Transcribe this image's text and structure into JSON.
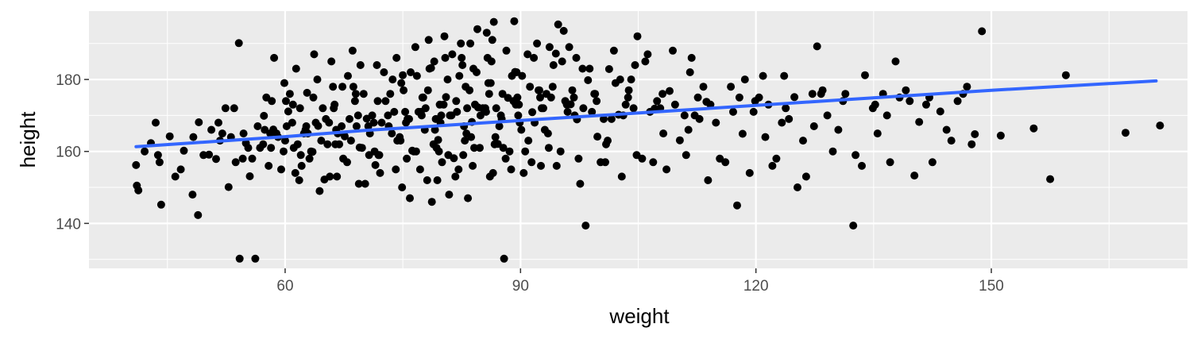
{
  "chart_data": {
    "type": "scatter",
    "title": "",
    "xlabel": "weight",
    "ylabel": "height",
    "xlim": [
      35,
      175
    ],
    "ylim": [
      127.5,
      199
    ],
    "x_ticks": [
      60,
      90,
      120,
      150
    ],
    "y_ticks": [
      140,
      160,
      180
    ],
    "x_tick_labels": [
      "60",
      "90",
      "120",
      "150"
    ],
    "y_tick_labels": [
      "140",
      "160",
      "180"
    ],
    "grid": true,
    "legend": "none",
    "colors": {
      "panel_background": "#ebebeb",
      "grid": "#ffffff",
      "points": "#000000",
      "smooth_line": "#3366ff"
    },
    "trend_line": {
      "type": "smooth",
      "x": [
        41,
        60,
        70,
        90,
        110,
        130,
        150,
        171
      ],
      "y": [
        161.3,
        164.1,
        165.8,
        168.6,
        171.4,
        174.2,
        177.0,
        179.6
      ]
    },
    "series": [
      {
        "x": [
          54.2,
          56.2,
          87.9,
          98.3,
          132.4,
          157.5,
          140.2,
          147.9,
          159.5,
          167.1,
          171.5,
          155.4,
          151.2,
          54.1,
          41.1,
          44.2,
          48.9,
          86.6,
          89.2,
          94.8,
          95.5,
          41.0,
          41.3,
          42.1,
          42.9,
          43.5,
          44.0,
          45.3,
          46.0,
          47.1,
          48.2,
          49.0,
          50.3,
          51.2,
          52.0,
          52.8,
          53.5,
          55.0,
          55.8,
          57.3,
          58.5,
          59.5,
          60.4,
          61.6,
          62.8,
          63.5,
          64.2,
          65.0,
          66.3,
          67.6,
          68.7,
          69.5,
          70.4,
          71.5,
          72.8,
          73.6,
          75.0,
          76.2,
          77.4,
          78.6,
          79.5,
          80.5,
          81.5,
          82.5,
          83.8,
          84.6,
          85.9,
          87.1,
          88.4,
          89.3,
          90.1,
          91.5,
          92.3,
          93.6,
          94.5,
          96.4,
          97.2,
          98.6,
          99.8,
          101.3,
          102.5,
          103.7,
          104.8,
          105.9,
          107.1,
          108.2,
          109.0,
          110.3,
          111.6,
          112.8,
          113.7,
          115.4,
          116.8,
          118.3,
          119.7,
          120.9,
          122.1,
          123.3,
          124.9,
          126.0,
          127.8,
          129.1,
          130.5,
          131.4,
          132.7,
          133.9,
          135.5,
          136.7,
          137.8,
          139.6,
          140.8,
          142.5,
          143.5,
          144.9,
          146.4,
          147.5,
          148.8,
          56.8,
          58.1,
          60.0,
          62.0,
          63.9,
          66.9,
          69.1,
          72.3,
          74.6,
          77.0,
          79.1,
          81.0,
          83.1,
          85.2,
          87.3,
          89.7,
          91.8,
          93.1,
          95.9,
          98.0,
          100.6,
          103.1,
          106.5,
          109.7,
          112.2,
          114.9,
          117.9,
          121.6,
          124.2,
          128.5,
          131.1,
          134.9,
          138.3,
          141.7,
          145.7,
          52.4,
          55.5,
          57.9,
          59.8,
          61.3,
          63.1,
          65.7,
          67.9,
          70.2,
          72.0,
          74.1,
          76.7,
          78.1,
          80.0,
          82.1,
          84.1,
          86.1,
          88.1,
          90.4,
          92.6,
          95.1,
          97.6,
          100.2,
          102.9,
          105.5,
          108.6,
          111.1,
          113.9,
          116.1,
          119.2,
          122.6,
          126.4,
          129.8,
          133.5,
          137.1,
          43.8,
          46.7,
          49.6,
          51.7,
          53.7,
          55.3,
          57.2,
          59.1,
          61.1,
          62.4,
          64.6,
          66.5,
          68.4,
          70.8,
          73.2,
          75.6,
          77.8,
          79.8,
          82.8,
          84.9,
          87.6,
          89.9,
          92.9,
          96.9,
          99.1,
          101.6,
          104.4,
          107.4,
          110.9,
          114.2,
          117.1,
          120.4,
          123.8,
          127.2,
          135.2,
          142.1,
          146.9,
          60.6,
          62.7,
          64.8,
          66.7,
          68.9,
          71.1,
          73.4,
          75.3,
          77.6,
          79.7,
          81.8,
          83.5,
          85.5,
          87.7,
          89.6,
          91.2,
          93.9,
          96.6,
          99.4,
          102.1,
          104.1,
          106.9,
          63.3,
          65.4,
          67.4,
          69.8,
          71.9,
          74.3,
          76.4,
          78.9,
          80.8,
          82.9,
          84.8,
          86.8,
          88.6,
          91.0,
          93.3,
          57.6,
          59.9,
          61.9,
          64.1,
          66.1,
          68.0,
          70.0,
          72.6,
          74.8,
          76.8,
          78.4,
          80.7,
          82.6,
          84.4,
          86.3,
          88.9,
          91.7,
          94.2,
          97.9,
          100.9,
          50.6,
          53.1,
          56.5,
          58.9,
          60.9,
          62.6,
          65.2,
          67.2,
          69.3,
          71.3,
          73.9,
          75.8,
          77.9,
          79.9,
          81.9,
          84.2,
          86.9,
          89.4,
          92.5,
          95.7,
          99.5,
          103.8,
          108.1,
          113.3,
          118.6,
          125.3,
          61.8,
          64.4,
          66.6,
          69.4,
          72.1,
          74.9,
          77.2,
          79.4,
          81.7,
          83.9,
          86.5,
          88.8,
          91.4,
          94.6,
          97.4,
          100.8,
          104.6,
          58.6,
          61.4,
          63.7,
          65.9,
          68.6,
          71.7,
          74.2,
          76.6,
          79.0,
          81.3,
          83.6,
          85.8,
          88.2,
          90.9,
          93.7,
          97.1,
          101.9,
          106.2,
          111.8,
          117.6,
          75.9,
          78.7,
          80.9,
          83.3,
          85.7,
          78.3,
          80.3,
          82.4,
          84.5,
          86.4,
          92.1,
          96.2,
          104.9,
          109.4,
          123.6,
          136.2,
          144.3,
          48.3,
          51.5,
          54.7,
          57.4,
          60.2,
          62.9,
          65.6,
          68.2,
          70.6,
          73.1,
          75.4,
          77.3,
          79.2,
          81.2,
          83.2,
          85.6,
          87.5,
          89.8,
          92.7,
          96.0,
          99.7,
          103.4,
          107.8,
          112.6,
          119.9,
          128.3,
          139.1,
          60.1,
          67.3,
          73.7,
          78.2,
          82.2,
          86.2,
          89.5,
          94.1,
          98.8,
          102.7,
          54.6,
          58.2,
          62.1,
          66.4,
          70.7,
          74.7,
          79.6,
          83.7,
          87.8,
          93.5,
          101.1,
          111.4,
          121.2,
          127.4,
          58.3,
          61.0,
          63.6,
          66.2,
          69.0,
          71.8,
          75.1,
          77.5,
          80.2,
          83.0,
          86.0,
          89.1,
          92.4,
          96.8,
          71.4,
          75.5,
          79.3,
          82.7,
          86.7,
          90.6,
          69.6,
          76.0,
          80.4,
          84.0,
          90.2,
          95.3
        ]
      }
    ],
    "series_y": [
      130.2,
      130.2,
      130.2,
      139.4,
      139.4,
      152.3,
      153.3,
      164.8,
      181.2,
      165.2,
      167.2,
      166.4,
      164.4,
      190.1,
      150.5,
      145.2,
      142.3,
      196.0,
      196.2,
      195.3,
      193.5,
      156.2,
      149.2,
      160.0,
      162.3,
      168.0,
      157.0,
      164.2,
      153.0,
      160.2,
      148.0,
      168.1,
      159.1,
      157.9,
      165.0,
      150.1,
      172.0,
      162.3,
      158.0,
      169.9,
      166.1,
      155.0,
      171.1,
      162.0,
      176.3,
      159.9,
      167.1,
      152.2,
      173.0,
      164.2,
      178.0,
      161.1,
      169.1,
      156.2,
      174.0,
      165.0,
      181.2,
      160.2,
      170.0,
      183.2,
      163.2,
      175.1,
      158.1,
      186.0,
      168.2,
      172.2,
      179.0,
      162.1,
      174.9,
      182.1,
      166.0,
      170.9,
      177.0,
      161.0,
      187.2,
      173.1,
      168.9,
      179.8,
      164.1,
      182.9,
      170.2,
      175.0,
      159.0,
      185.0,
      171.9,
      165.0,
      176.8,
      163.1,
      182.0,
      169.0,
      173.8,
      158.0,
      178.0,
      164.9,
      171.0,
      181.0,
      156.0,
      168.0,
      175.1,
      163.0,
      189.2,
      170.0,
      166.0,
      176.0,
      159.0,
      181.2,
      165.0,
      170.0,
      185.0,
      174.0,
      168.2,
      157.0,
      171.1,
      163.0,
      176.0,
      162.0,
      193.4,
      161.0,
      165.0,
      163.0,
      159.0,
      168.0,
      162.0,
      167.0,
      168.0,
      164.0,
      171.0,
      166.0,
      170.0,
      165.0,
      172.0,
      167.0,
      170.0,
      168.0,
      166.0,
      173.0,
      172.0,
      169.0,
      170.0,
      171.0,
      173.0,
      170.0,
      168.0,
      175.0,
      173.0,
      169.0,
      177.0,
      174.0,
      172.0,
      175.0,
      173.0,
      174.0,
      172.0,
      153.1,
      156.0,
      160.0,
      154.0,
      158.0,
      153.0,
      157.0,
      151.0,
      159.0,
      155.0,
      160.0,
      152.0,
      157.0,
      155.0,
      161.0,
      153.0,
      158.0,
      154.0,
      156.0,
      160.0,
      151.0,
      157.0,
      153.0,
      158.0,
      155.0,
      159.0,
      152.0,
      157.0,
      154.0,
      158.0,
      153.0,
      160.0,
      156.0,
      157.0,
      159.0,
      155.0,
      159.0,
      163.0,
      157.0,
      161.0,
      162.0,
      164.0,
      161.0,
      165.0,
      163.0,
      166.0,
      163.0,
      165.0,
      167.0,
      169.0,
      166.0,
      168.0,
      167.0,
      170.0,
      169.0,
      168.0,
      172.0,
      170.0,
      171.0,
      169.0,
      172.0,
      174.0,
      170.0,
      173.0,
      171.0,
      175.0,
      172.0,
      176.0,
      173.0,
      175.0,
      178.0,
      176.0,
      167.0,
      172.0,
      165.0,
      174.0,
      170.0,
      176.0,
      171.0,
      175.0,
      173.0,
      174.0,
      177.0,
      172.0,
      176.0,
      175.0,
      178.0,
      175.0,
      177.0,
      176.0,
      179.0,
      180.0,
      157.0,
      160.0,
      162.0,
      158.0,
      161.0,
      159.0,
      163.0,
      160.0,
      162.0,
      159.0,
      163.0,
      161.0,
      164.0,
      160.0,
      163.0,
      176.0,
      175.0,
      179.0,
      172.0,
      180.0,
      178.0,
      181.0,
      176.0,
      182.0,
      179.0,
      181.0,
      183.0,
      180.0,
      184.0,
      182.0,
      185.0,
      181.0,
      186.0,
      184.0,
      183.0,
      162.0,
      166.0,
      164.0,
      167.0,
      165.0,
      168.0,
      166.0,
      169.0,
      167.0,
      170.0,
      168.0,
      171.0,
      169.0,
      172.0,
      170.0,
      171.0,
      173.0,
      172.0,
      173.0,
      175.0,
      174.0,
      176.0,
      177.0,
      176.0,
      178.0,
      180.0,
      150.0,
      152.0,
      149.0,
      153.0,
      151.0,
      154.0,
      150.0,
      155.0,
      152.0,
      153.0,
      156.0,
      154.0,
      155.0,
      157.0,
      156.0,
      158.0,
      157.0,
      184.0,
      186.0,
      183.0,
      187.0,
      185.0,
      188.0,
      184.0,
      186.0,
      189.0,
      185.0,
      187.0,
      190.0,
      186.0,
      188.0,
      187.0,
      189.0,
      186.0,
      188.0,
      187.0,
      186.0,
      145.0,
      147.0,
      146.0,
      148.0,
      147.0,
      193.0,
      191.0,
      192.0,
      190.0,
      194.0,
      191.0,
      190.0,
      189.0,
      192.0,
      188.0,
      181.0,
      176.0,
      166.0,
      164.0,
      168.0,
      165.0,
      166.0,
      167.0,
      165.0,
      168.0,
      169.0,
      167.0,
      170.0,
      168.0,
      171.0,
      169.0,
      170.0,
      172.0,
      171.0,
      170.0,
      173.0,
      172.0,
      171.0,
      174.0,
      173.0,
      172.0,
      175.0,
      174.0,
      176.0,
      177.0,
      174.0,
      178.0,
      180.0,
      177.0,
      181.0,
      179.0,
      182.0,
      178.0,
      183.0,
      180.0,
      158.0,
      161.0,
      156.0,
      162.0,
      159.0,
      163.0,
      160.0,
      164.0,
      161.0,
      165.0,
      163.0,
      166.0,
      164.0,
      167.0,
      174.0,
      173.0,
      175.0,
      172.0,
      176.0,
      174.0,
      177.0,
      175.0,
      173.0,
      178.0,
      176.0,
      174.0,
      177.0,
      175.0,
      160.0,
      158.0,
      161.0,
      159.0,
      162.0,
      160.0,
      184.0,
      182.0,
      186.0,
      183.0,
      181.0,
      185.0
    ]
  }
}
